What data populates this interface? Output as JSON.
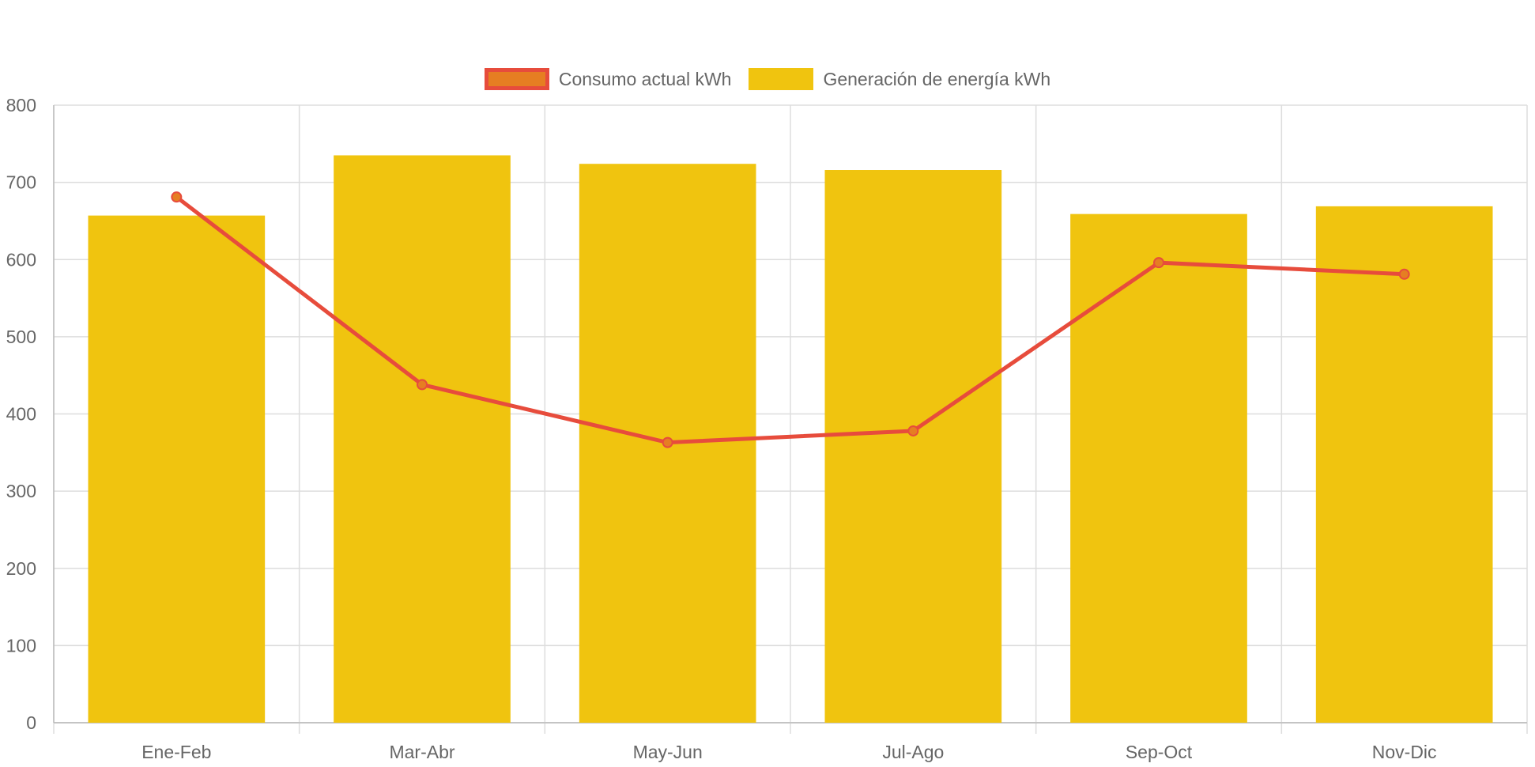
{
  "legend": {
    "line_label": "Consumo actual kWh",
    "bar_label": "Generación de energía kWh"
  },
  "colors": {
    "line": "#E74C3C",
    "line_point_fill": "#E67E22",
    "bar": "#F0C40F",
    "grid": "#DDDDDD",
    "axis_text": "#666666"
  },
  "chart_data": {
    "type": "bar",
    "title": "",
    "xlabel": "",
    "ylabel": "",
    "categories": [
      "Ene-Feb",
      "Mar-Abr",
      "May-Jun",
      "Jul-Ago",
      "Sep-Oct",
      "Nov-Dic"
    ],
    "ylim": [
      0,
      800
    ],
    "yticks": [
      0,
      100,
      200,
      300,
      400,
      500,
      600,
      700,
      800
    ],
    "grid": true,
    "legend_position": "top-center",
    "series": [
      {
        "name": "Consumo actual kWh",
        "type": "line",
        "values": [
          681,
          438,
          363,
          378,
          596,
          581
        ]
      },
      {
        "name": "Generación de energía kWh",
        "type": "bar",
        "values": [
          657,
          735,
          724,
          716,
          659,
          669
        ]
      }
    ]
  }
}
